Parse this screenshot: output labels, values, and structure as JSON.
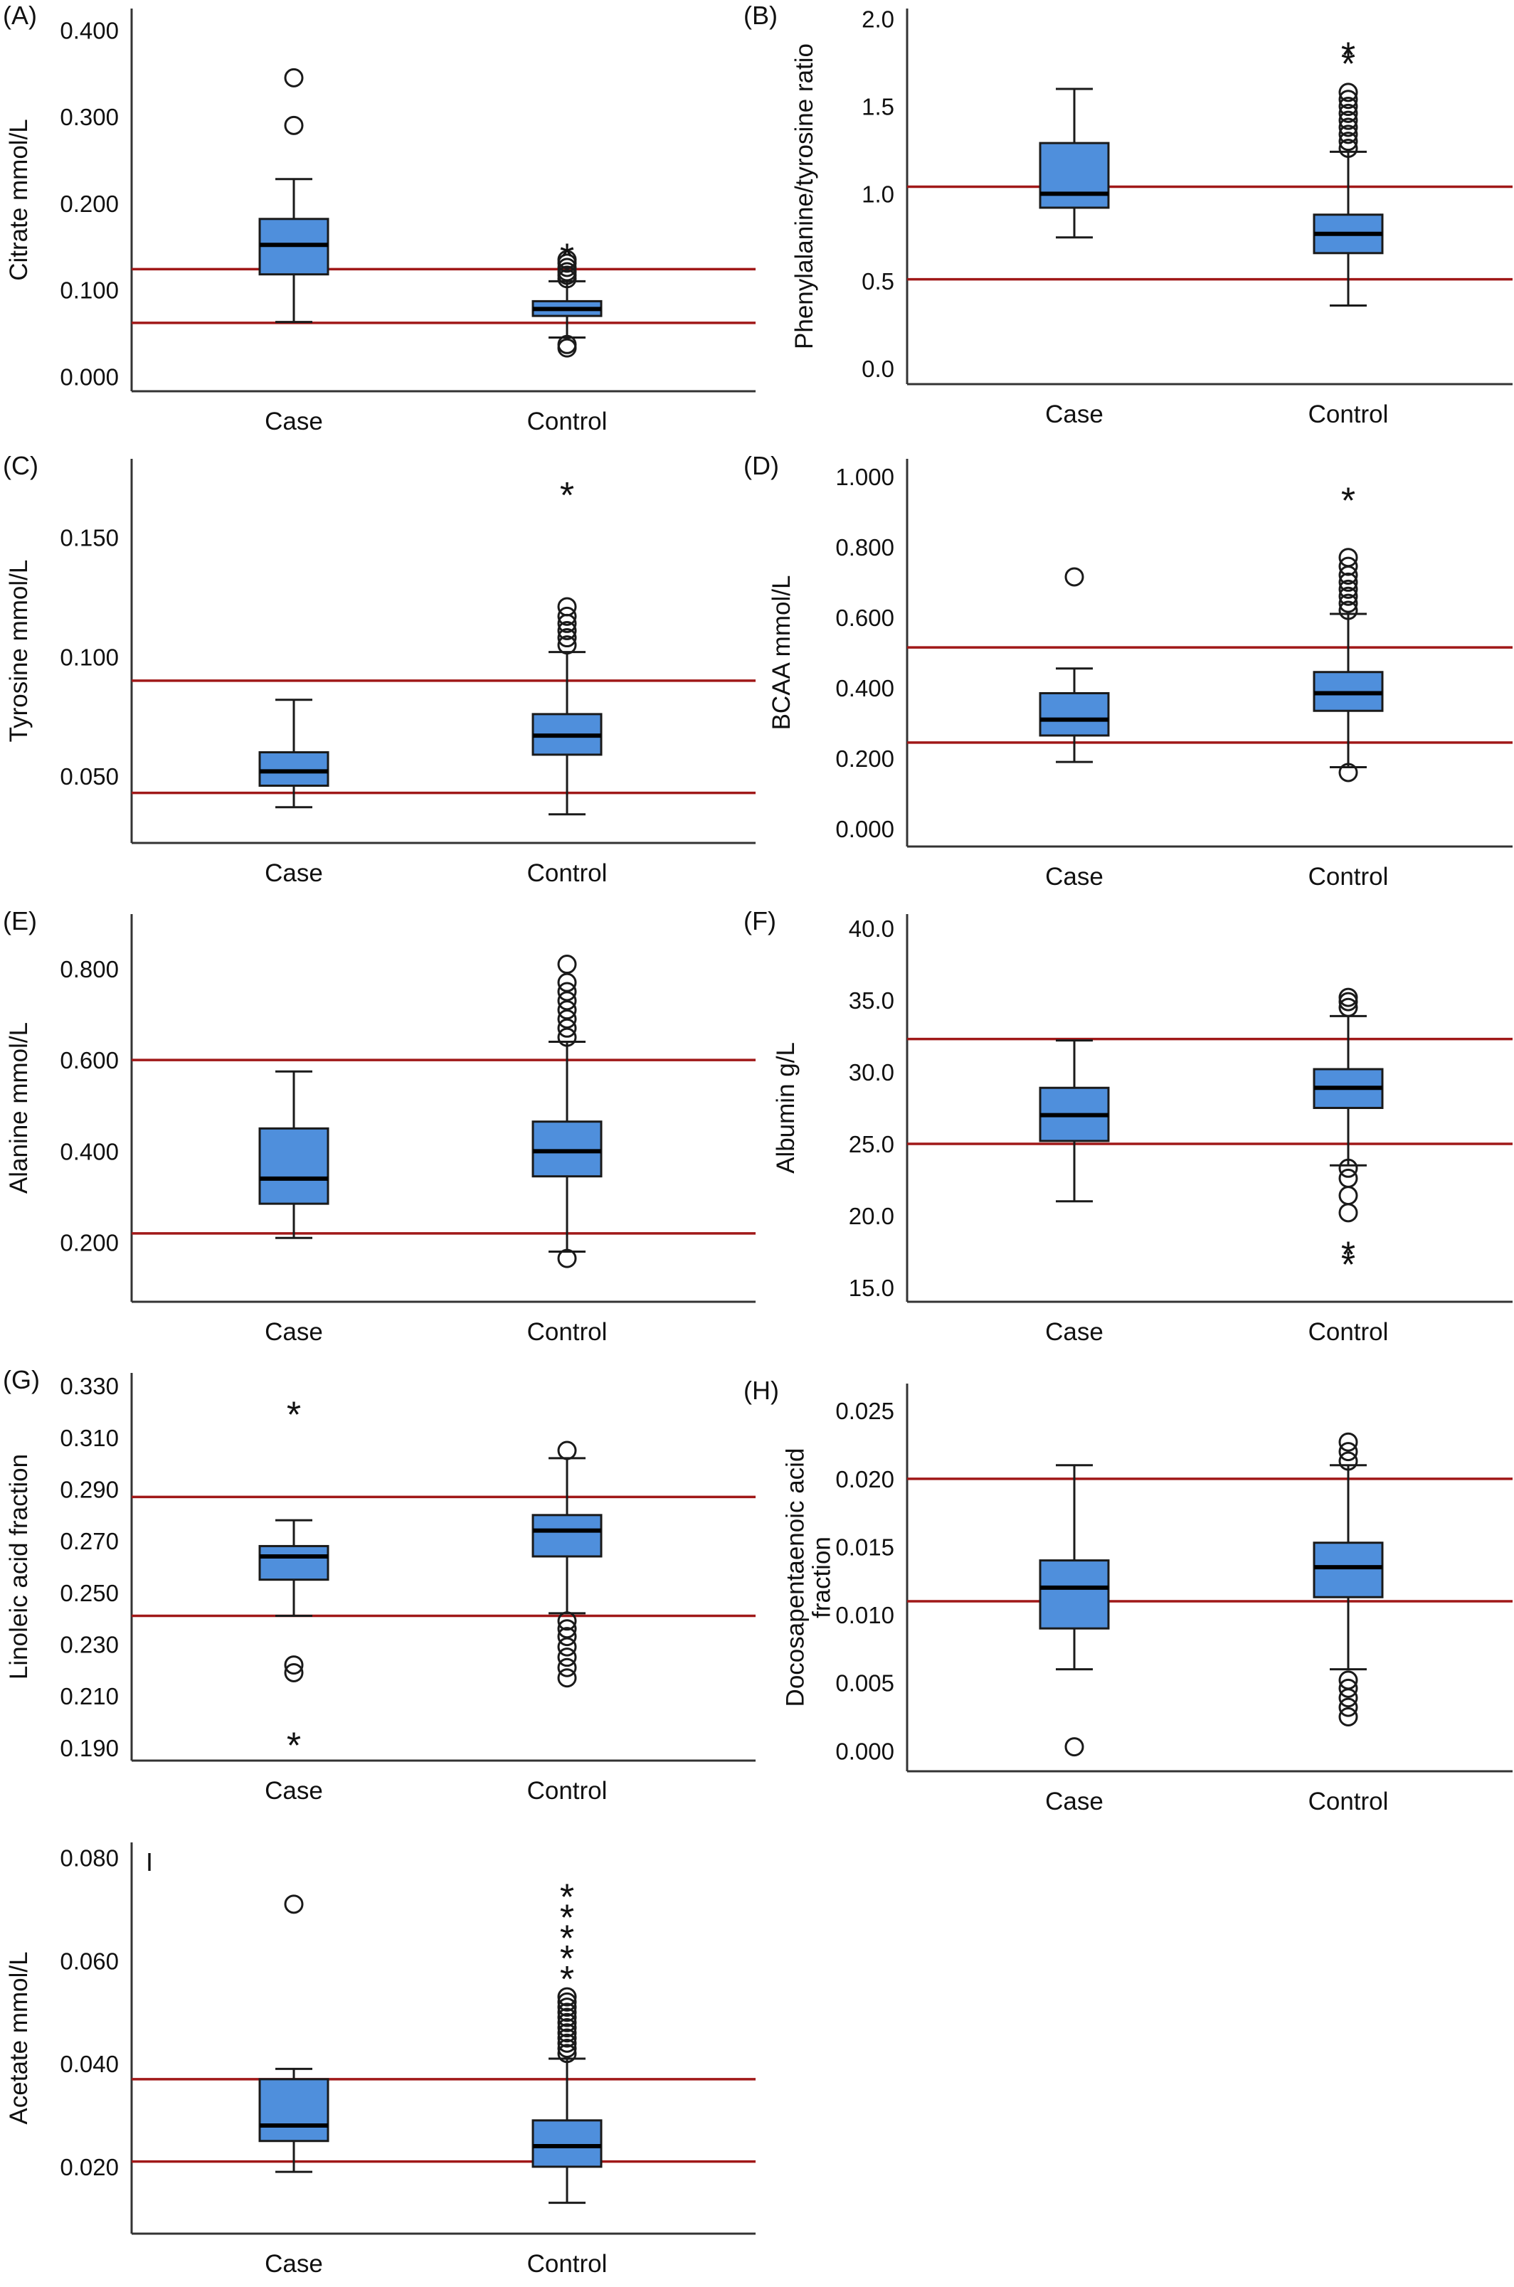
{
  "colors": {
    "box_fill": "#4f8fdc",
    "box_stroke": "#1a1a1a",
    "reference_line": "#a01818",
    "axis": "#333333",
    "text": "#111111"
  },
  "chart_data": [
    {
      "panel": "(A)",
      "type": "box",
      "ylabel": "Citrate mmol/L",
      "categories": [
        "Case",
        "Control"
      ],
      "y_ticks": [
        "0.000",
        "0.100",
        "0.200",
        "0.300",
        "0.400"
      ],
      "ylim": [
        -0.017,
        0.425
      ],
      "reference_lines": [
        0.062,
        0.124
      ],
      "boxes": [
        {
          "category": "Case",
          "whisker_low": 0.063,
          "q1": 0.118,
          "median": 0.152,
          "q3": 0.182,
          "whisker_high": 0.228,
          "outliers_circle": [
            0.29,
            0.345
          ],
          "outliers_star": []
        },
        {
          "category": "Control",
          "whisker_low": 0.045,
          "q1": 0.07,
          "median": 0.078,
          "q3": 0.087,
          "whisker_high": 0.11,
          "outliers_circle": [
            0.033,
            0.037,
            0.113,
            0.117,
            0.121,
            0.126,
            0.131,
            0.135
          ],
          "outliers_star": [
            0.142
          ]
        }
      ]
    },
    {
      "panel": "(B)",
      "type": "box",
      "ylabel": "Phenylalanine/tyrosine ratio",
      "categories": [
        "Case",
        "Control"
      ],
      "y_ticks": [
        "0.0",
        "0.5",
        "1.0",
        "1.5",
        "2.0"
      ],
      "ylim": [
        -0.09,
        2.06
      ],
      "reference_lines": [
        0.51,
        1.04
      ],
      "boxes": [
        {
          "category": "Case",
          "whisker_low": 0.75,
          "q1": 0.92,
          "median": 1.0,
          "q3": 1.29,
          "whisker_high": 1.6,
          "outliers_circle": [],
          "outliers_star": []
        },
        {
          "category": "Control",
          "whisker_low": 0.36,
          "q1": 0.66,
          "median": 0.77,
          "q3": 0.88,
          "whisker_high": 1.24,
          "outliers_circle": [
            1.26,
            1.3,
            1.34,
            1.38,
            1.42,
            1.46,
            1.5,
            1.54,
            1.58
          ],
          "outliers_star": [
            1.76,
            1.81
          ]
        }
      ]
    },
    {
      "panel": "(C)",
      "type": "box",
      "ylabel": "Tyrosine mmol/L",
      "categories": [
        "Case",
        "Control"
      ],
      "y_ticks": [
        "0.050",
        "0.100",
        "0.150"
      ],
      "ylim": [
        0.022,
        0.183
      ],
      "reference_lines": [
        0.043,
        0.09
      ],
      "boxes": [
        {
          "category": "Case",
          "whisker_low": 0.037,
          "q1": 0.046,
          "median": 0.052,
          "q3": 0.06,
          "whisker_high": 0.082,
          "outliers_circle": [],
          "outliers_star": []
        },
        {
          "category": "Control",
          "whisker_low": 0.034,
          "q1": 0.059,
          "median": 0.067,
          "q3": 0.076,
          "whisker_high": 0.102,
          "outliers_circle": [
            0.105,
            0.108,
            0.111,
            0.114,
            0.117,
            0.121
          ],
          "outliers_star": [
            0.169
          ]
        }
      ]
    },
    {
      "panel": "(D)",
      "type": "box",
      "ylabel": "BCAA mmol/L",
      "categories": [
        "Case",
        "Control"
      ],
      "y_ticks": [
        "0.000",
        "0.200",
        "0.400",
        "0.600",
        "0.800",
        "1.000"
      ],
      "ylim": [
        -0.05,
        1.05
      ],
      "reference_lines": [
        0.245,
        0.515
      ],
      "boxes": [
        {
          "category": "Case",
          "whisker_low": 0.19,
          "q1": 0.265,
          "median": 0.31,
          "q3": 0.385,
          "whisker_high": 0.455,
          "outliers_circle": [
            0.715
          ],
          "outliers_star": []
        },
        {
          "category": "Control",
          "whisker_low": 0.175,
          "q1": 0.335,
          "median": 0.385,
          "q3": 0.445,
          "whisker_high": 0.61,
          "outliers_circle": [
            0.16,
            0.62,
            0.64,
            0.66,
            0.68,
            0.7,
            0.72,
            0.745,
            0.77
          ],
          "outliers_star": [
            0.94
          ]
        }
      ]
    },
    {
      "panel": "(E)",
      "type": "box",
      "ylabel": "Alanine mmol/L",
      "categories": [
        "Case",
        "Control"
      ],
      "y_ticks": [
        "0.200",
        "0.400",
        "0.600",
        "0.800"
      ],
      "ylim": [
        0.07,
        0.92
      ],
      "reference_lines": [
        0.22,
        0.6
      ],
      "boxes": [
        {
          "category": "Case",
          "whisker_low": 0.21,
          "q1": 0.285,
          "median": 0.34,
          "q3": 0.45,
          "whisker_high": 0.575,
          "outliers_circle": [],
          "outliers_star": []
        },
        {
          "category": "Control",
          "whisker_low": 0.18,
          "q1": 0.345,
          "median": 0.4,
          "q3": 0.465,
          "whisker_high": 0.64,
          "outliers_circle": [
            0.165,
            0.65,
            0.67,
            0.69,
            0.71,
            0.73,
            0.75,
            0.77,
            0.81
          ],
          "outliers_star": []
        }
      ]
    },
    {
      "panel": "(F)",
      "type": "box",
      "ylabel": "Albumin g/L",
      "categories": [
        "Case",
        "Control"
      ],
      "y_ticks": [
        "15.0",
        "20.0",
        "25.0",
        "30.0",
        "35.0",
        "40.0"
      ],
      "ylim": [
        14.0,
        41.0
      ],
      "reference_lines": [
        25.0,
        32.3
      ],
      "boxes": [
        {
          "category": "Case",
          "whisker_low": 21.0,
          "q1": 25.2,
          "median": 27.0,
          "q3": 28.9,
          "whisker_high": 32.2,
          "outliers_circle": [],
          "outliers_star": []
        },
        {
          "category": "Control",
          "whisker_low": 23.5,
          "q1": 27.5,
          "median": 28.9,
          "q3": 30.2,
          "whisker_high": 33.9,
          "outliers_circle": [
            20.2,
            21.4,
            22.6,
            23.3,
            34.5,
            34.9,
            35.2
          ],
          "outliers_star": [
            16.8,
            17.5
          ]
        }
      ]
    },
    {
      "panel": "(G)",
      "type": "box",
      "ylabel": "Linoleic acid fraction",
      "categories": [
        "Case",
        "Control"
      ],
      "y_ticks": [
        "0.190",
        "0.210",
        "0.230",
        "0.250",
        "0.270",
        "0.290",
        "0.310",
        "0.330"
      ],
      "ylim": [
        0.185,
        0.335
      ],
      "reference_lines": [
        0.241,
        0.287
      ],
      "boxes": [
        {
          "category": "Case",
          "whisker_low": 0.241,
          "q1": 0.255,
          "median": 0.264,
          "q3": 0.268,
          "whisker_high": 0.278,
          "outliers_circle": [
            0.219,
            0.222
          ],
          "outliers_star": [
            0.192,
            0.32
          ]
        },
        {
          "category": "Control",
          "whisker_low": 0.242,
          "q1": 0.264,
          "median": 0.274,
          "q3": 0.28,
          "whisker_high": 0.302,
          "outliers_circle": [
            0.217,
            0.221,
            0.225,
            0.229,
            0.233,
            0.236,
            0.239,
            0.305
          ],
          "outliers_star": []
        }
      ]
    },
    {
      "panel": "(H)",
      "type": "box",
      "ylabel": "Docosapentaenoic acid fraction",
      "categories": [
        "Case",
        "Control"
      ],
      "y_ticks": [
        "0.000",
        "0.005",
        "0.010",
        "0.015",
        "0.020",
        "0.025"
      ],
      "ylim": [
        -0.0015,
        0.027
      ],
      "reference_lines": [
        0.011,
        0.02
      ],
      "boxes": [
        {
          "category": "Case",
          "whisker_low": 0.006,
          "q1": 0.009,
          "median": 0.012,
          "q3": 0.014,
          "whisker_high": 0.021,
          "outliers_circle": [
            0.0003
          ],
          "outliers_star": []
        },
        {
          "category": "Control",
          "whisker_low": 0.006,
          "q1": 0.0113,
          "median": 0.0135,
          "q3": 0.0153,
          "whisker_high": 0.021,
          "outliers_circle": [
            0.0025,
            0.0032,
            0.0039,
            0.0046,
            0.0052,
            0.0213,
            0.022,
            0.0227
          ],
          "outliers_star": []
        }
      ]
    },
    {
      "panel": "I",
      "type": "box",
      "ylabel": "Acetate mmol/L",
      "categories": [
        "Case",
        "Control"
      ],
      "y_ticks": [
        "0.020",
        "0.040",
        "0.060",
        "0.080"
      ],
      "ylim": [
        0.007,
        0.083
      ],
      "reference_lines": [
        0.021,
        0.037
      ],
      "boxes": [
        {
          "category": "Case",
          "whisker_low": 0.019,
          "q1": 0.025,
          "median": 0.028,
          "q3": 0.037,
          "whisker_high": 0.039,
          "outliers_circle": [
            0.071
          ],
          "outliers_star": []
        },
        {
          "category": "Control",
          "whisker_low": 0.013,
          "q1": 0.02,
          "median": 0.024,
          "q3": 0.029,
          "whisker_high": 0.041,
          "outliers_circle": [
            0.042,
            0.043,
            0.044,
            0.045,
            0.046,
            0.047,
            0.048,
            0.049,
            0.05,
            0.051,
            0.052,
            0.053
          ],
          "outliers_star": [
            0.057,
            0.061,
            0.065,
            0.069,
            0.073
          ]
        }
      ]
    }
  ]
}
